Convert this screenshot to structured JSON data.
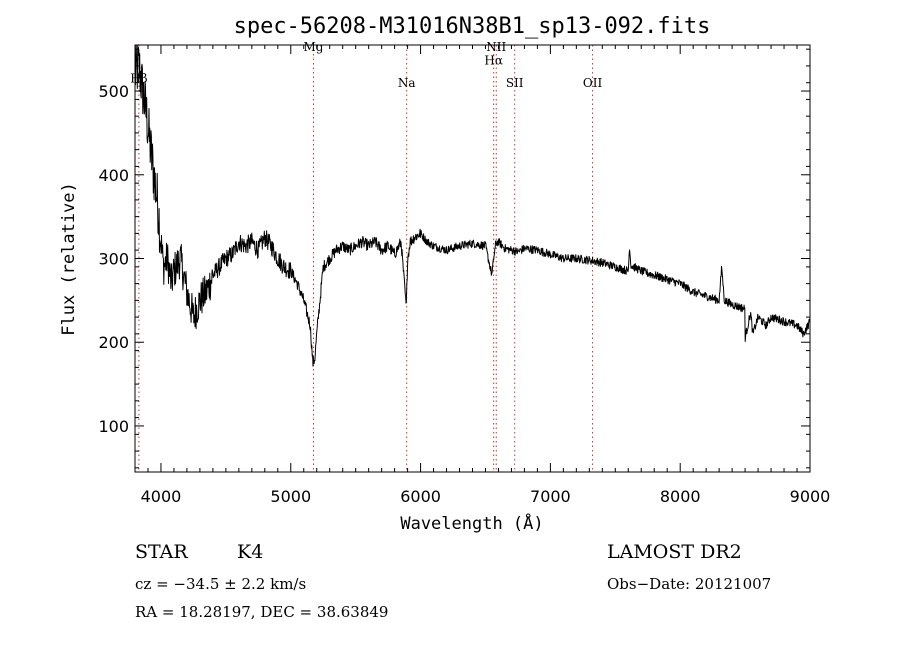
{
  "chart_data": {
    "type": "line",
    "title": "spec-56208-M31016N38B1_sp13-092.fits",
    "xlabel": "Wavelength (Å)",
    "ylabel": "Flux (relative)",
    "xlim": [
      3800,
      9000
    ],
    "ylim": [
      45,
      555
    ],
    "xticks": [
      4000,
      5000,
      6000,
      7000,
      8000,
      9000
    ],
    "yticks": [
      100,
      200,
      300,
      400,
      500
    ],
    "line_color": "#000000",
    "marker_color": "#cc3333",
    "lines": [
      {
        "label": "Hβ",
        "x": 3830,
        "label_y": 510
      },
      {
        "label": "Mg",
        "x": 5175,
        "label_y": 548
      },
      {
        "label": "Na",
        "x": 5893,
        "label_y": 505
      },
      {
        "label": "NII",
        "x": 6583,
        "label_y": 548
      },
      {
        "label": "Hα",
        "x": 6563,
        "label_y": 532
      },
      {
        "label": "SII",
        "x": 6725,
        "label_y": 505
      },
      {
        "label": "OII",
        "x": 7325,
        "label_y": 505
      }
    ],
    "spectrum": {
      "x": [
        3800,
        3830,
        3860,
        3890,
        3920,
        3950,
        3980,
        4000,
        4020,
        4050,
        4080,
        4100,
        4150,
        4200,
        4250,
        4300,
        4350,
        4400,
        4450,
        4500,
        4550,
        4600,
        4650,
        4700,
        4750,
        4800,
        4850,
        4900,
        4950,
        5000,
        5050,
        5100,
        5150,
        5170,
        5185,
        5200,
        5250,
        5300,
        5350,
        5400,
        5450,
        5500,
        5550,
        5600,
        5650,
        5700,
        5750,
        5800,
        5850,
        5890,
        5900,
        5920,
        5950,
        6000,
        6050,
        6100,
        6200,
        6300,
        6400,
        6500,
        6550,
        6563,
        6580,
        6600,
        6650,
        6700,
        6750,
        6800,
        6900,
        7000,
        7100,
        7200,
        7300,
        7400,
        7500,
        7600,
        7610,
        7620,
        7700,
        7800,
        7900,
        8000,
        8100,
        8200,
        8300,
        8320,
        8340,
        8400,
        8498,
        8500,
        8542,
        8560,
        8600,
        8662,
        8700,
        8800,
        8900,
        8950,
        9000
      ],
      "y": [
        520,
        530,
        500,
        470,
        430,
        395,
        360,
        320,
        290,
        300,
        270,
        285,
        300,
        260,
        230,
        250,
        260,
        280,
        290,
        300,
        305,
        320,
        315,
        320,
        310,
        325,
        315,
        300,
        290,
        285,
        270,
        250,
        220,
        175,
        180,
        210,
        290,
        300,
        310,
        315,
        310,
        315,
        320,
        315,
        320,
        310,
        315,
        305,
        320,
        240,
        300,
        320,
        325,
        330,
        320,
        315,
        310,
        315,
        318,
        315,
        280,
        300,
        318,
        320,
        312,
        310,
        308,
        312,
        310,
        305,
        300,
        300,
        298,
        295,
        290,
        285,
        315,
        292,
        285,
        280,
        275,
        270,
        260,
        255,
        250,
        290,
        250,
        245,
        240,
        205,
        235,
        210,
        230,
        220,
        230,
        225,
        220,
        210,
        225
      ]
    }
  },
  "footer": {
    "class_label": "STAR",
    "subclass": "K4",
    "survey": "LAMOST DR2",
    "cz": "cz = −34.5 ± 2.2 km/s",
    "obs_date": "Obs−Date: 20121007",
    "coords": "RA =  18.28197, DEC =  38.63849"
  }
}
